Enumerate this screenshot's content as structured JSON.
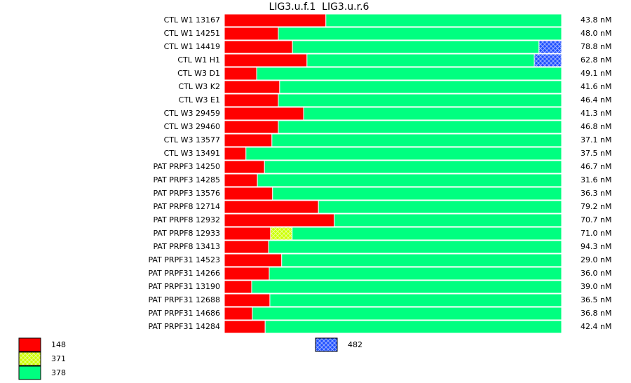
{
  "chart_data": {
    "type": "bar",
    "orientation": "horizontal",
    "stacked": true,
    "title": "LIG3.u.f.1  LIG3.u.r.6",
    "categories": [
      "CTL W1 13167",
      "CTL W1 14251",
      "CTL W1 14419",
      "CTL W1 H1",
      "CTL W3 D1",
      "CTL W3 K2",
      "CTL W3 E1",
      "CTL W3 29459",
      "CTL W3 29460",
      "CTL W3 13577",
      "CTL W3 13491",
      "PAT PRPF3 14250",
      "PAT PRPF3 14285",
      "PAT PRPF3 13576",
      "PAT PRPF8 12714",
      "PAT PRPF8 12932",
      "PAT PRPF8 12933",
      "PAT PRPF8 13413",
      "PAT PRPF31 14523",
      "PAT PRPF31 14266",
      "PAT PRPF31 13190",
      "PAT PRPF31 12688",
      "PAT PRPF31 14686",
      "PAT PRPF31 14284"
    ],
    "row_labels": [
      "43.8 nM",
      "48.0 nM",
      "78.8 nM",
      "62.8 nM",
      "49.1 nM",
      "41.6 nM",
      "46.4 nM",
      "41.3 nM",
      "46.8 nM",
      "37.1 nM",
      "37.5 nM",
      "46.7 nM",
      "31.6 nM",
      "36.3 nM",
      "79.2 nM",
      "70.7 nM",
      "71.0 nM",
      "94.3 nM",
      "29.0 nM",
      "36.0 nM",
      "39.0 nM",
      "36.5 nM",
      "36.8 nM",
      "42.4 nM"
    ],
    "xlim": [
      0,
      100
    ],
    "series": [
      {
        "name": "148",
        "color": "#ff0000",
        "hatched": false,
        "values": [
          30.1,
          16.0,
          20.2,
          24.5,
          9.6,
          16.4,
          16.0,
          23.5,
          16.0,
          14.1,
          6.4,
          11.9,
          9.8,
          14.3,
          27.9,
          32.6,
          13.7,
          13.1,
          17.0,
          13.3,
          8.1,
          13.5,
          8.3,
          12.1
        ]
      },
      {
        "name": "371",
        "color": "#ccff00",
        "hatched": true,
        "values": [
          null,
          null,
          null,
          null,
          null,
          null,
          null,
          null,
          null,
          null,
          null,
          null,
          null,
          null,
          null,
          null,
          6.4,
          null,
          null,
          null,
          null,
          null,
          null,
          null
        ]
      },
      {
        "name": "378",
        "color": "#00ff80",
        "hatched": false,
        "values": [
          69.9,
          84.0,
          73.1,
          67.4,
          90.4,
          83.6,
          84.0,
          76.5,
          84.0,
          85.9,
          93.6,
          88.1,
          90.2,
          85.7,
          72.1,
          67.4,
          79.9,
          86.9,
          83.0,
          86.7,
          91.9,
          86.5,
          91.7,
          87.9
        ]
      },
      {
        "name": "482",
        "color": "#1f4fff",
        "hatched": true,
        "values": [
          null,
          null,
          6.7,
          8.1,
          null,
          null,
          null,
          null,
          null,
          null,
          null,
          null,
          null,
          null,
          null,
          null,
          null,
          null,
          null,
          null,
          null,
          null,
          null,
          null
        ]
      }
    ]
  }
}
